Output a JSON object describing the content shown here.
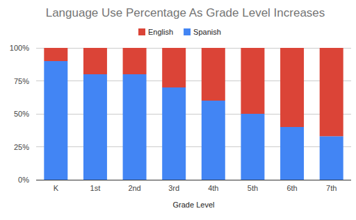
{
  "chart_data": {
    "type": "bar",
    "title": "Language Use Percentage As Grade Level Increases",
    "x_label": "Grade Level",
    "categories": [
      "K",
      "1st",
      "2nd",
      "3rd",
      "4th",
      "5th",
      "6th",
      "7th"
    ],
    "series": [
      {
        "name": "English",
        "color": "#db4437",
        "values": [
          10,
          20,
          20,
          30,
          40,
          50,
          60,
          67
        ]
      },
      {
        "name": "Spanish",
        "color": "#4285f4",
        "values": [
          90,
          80,
          80,
          70,
          60,
          50,
          40,
          33
        ]
      }
    ],
    "ylim": [
      0,
      100
    ],
    "yticks": [
      {
        "value": 0,
        "label": "0%"
      },
      {
        "value": 25,
        "label": "25%"
      },
      {
        "value": 50,
        "label": "50%"
      },
      {
        "value": 75,
        "label": "75%"
      },
      {
        "value": 100,
        "label": "100%"
      }
    ],
    "stacked": true,
    "grid": true,
    "legend": "top"
  }
}
